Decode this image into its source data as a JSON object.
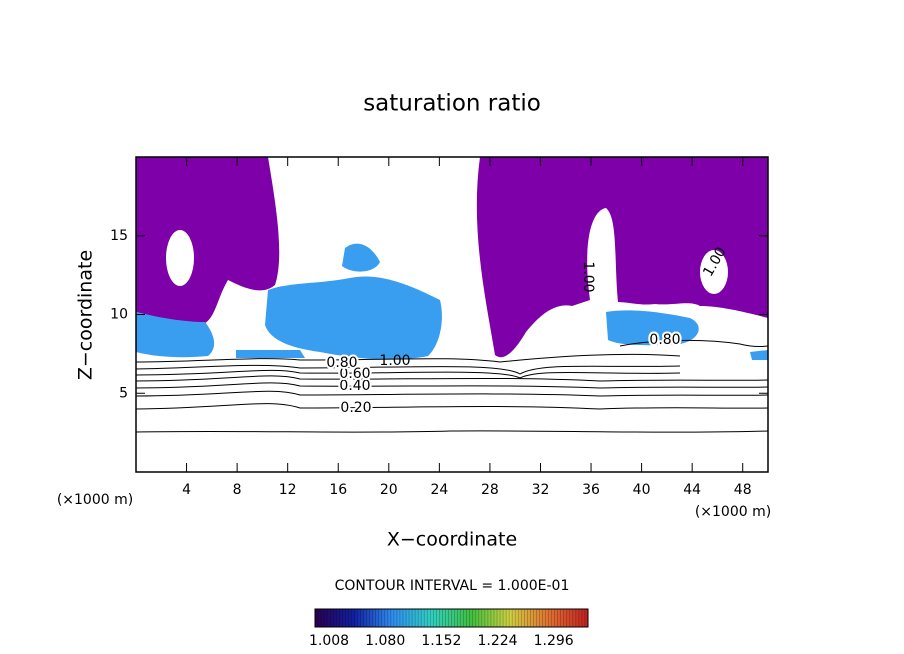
{
  "chart_data": {
    "type": "contour",
    "title": "saturation ratio",
    "xlabel": "X−coordinate",
    "ylabel": "Z−coordinate",
    "x_unit": "(×1000 m)",
    "y_unit": "(×1000 m)",
    "xlim": [
      0,
      50
    ],
    "ylim": [
      0,
      20
    ],
    "xticks": [
      4,
      8,
      12,
      16,
      20,
      24,
      28,
      32,
      36,
      40,
      44,
      48
    ],
    "yticks": [
      5,
      10,
      15
    ],
    "contour_labels": [
      "0.20",
      "0.40",
      "0.60",
      "0.80",
      "1.00",
      "0.80",
      "1.00",
      "1.00"
    ],
    "contour_interval_text": "CONTOUR INTERVAL = 1.000E-01",
    "colorbar": {
      "lim": [
        0.99,
        1.34
      ],
      "ticks": [
        {
          "value": 1.008,
          "label": "1.008"
        },
        {
          "value": 1.08,
          "label": "1.080"
        },
        {
          "value": 1.152,
          "label": "1.152"
        },
        {
          "value": 1.224,
          "label": "1.224"
        },
        {
          "value": 1.296,
          "label": "1.296"
        }
      ],
      "colors": [
        "#2a0050",
        "#1020a0",
        "#2f8ff0",
        "#30d0c0",
        "#40c040",
        "#d0d040",
        "#e07030",
        "#c02020"
      ]
    }
  }
}
